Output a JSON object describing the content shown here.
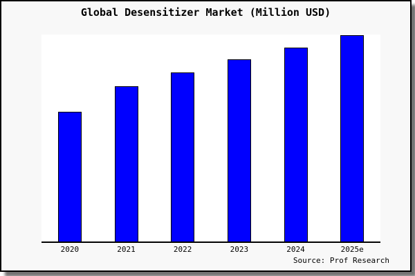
{
  "page": {
    "source_credit": "Source: Prof Research"
  },
  "chart_data": {
    "type": "bar",
    "title": "Global Desensitizer Market (Million USD)",
    "categories": [
      "2020",
      "2021",
      "2022",
      "2023",
      "2024",
      "2025e"
    ],
    "values": [
      188,
      225,
      245,
      264,
      281,
      299
    ],
    "values_note": "No y-axis scale is shown in the image; values are relative bar heights read from pixels (baseline 0, plot-area max 300).",
    "ylim": [
      0,
      300
    ],
    "xlabel": "",
    "ylabel": "",
    "legend": "none",
    "grid": false,
    "y_axis_visible": false,
    "x_axis_visible": true,
    "bar_color": "#0000ff",
    "bar_border_color": "#000000",
    "axis_color": "#000000"
  },
  "colors": {
    "canvas_background": "#f8f8f8",
    "plot_background": "#ffffff",
    "frame_border": "#000000",
    "shadow_gray": "#8a8a8a",
    "text": "#000000"
  }
}
